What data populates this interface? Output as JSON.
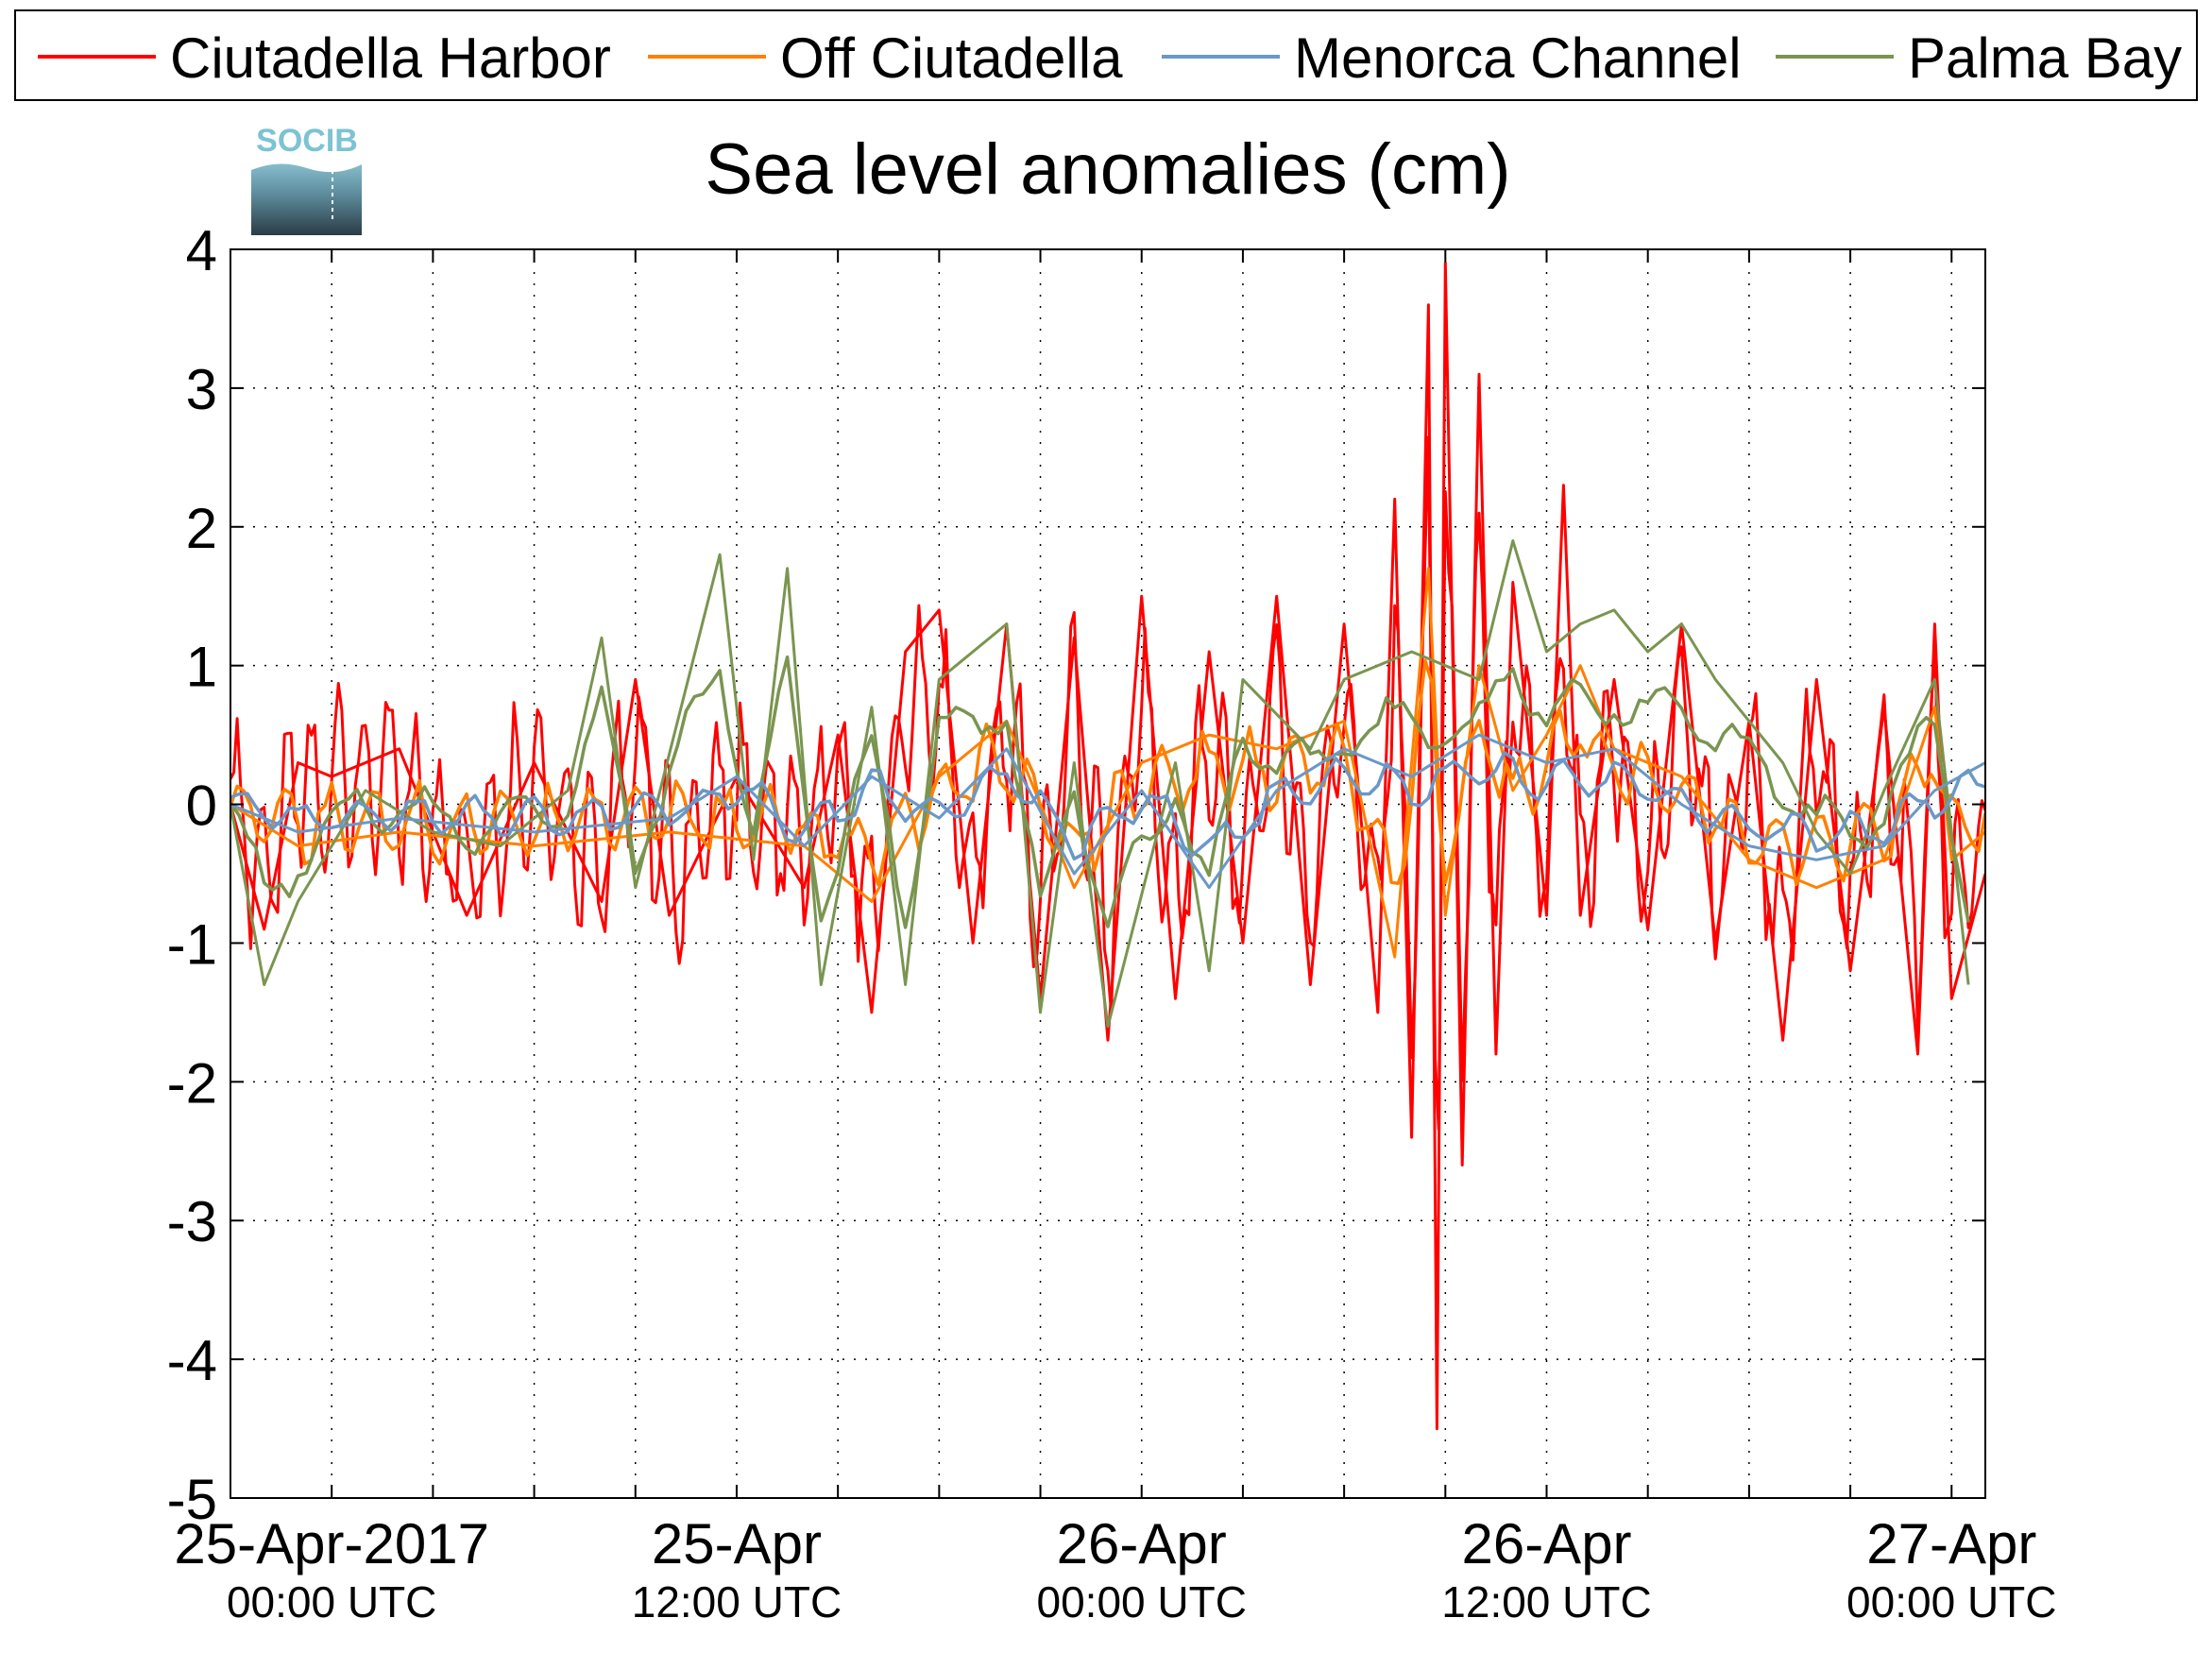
{
  "chart_data": {
    "type": "line",
    "title": "Sea level anomalies (cm)",
    "ylim": [
      -5,
      4
    ],
    "y_ticks": [
      -5,
      -4,
      -3,
      -2,
      -1,
      0,
      1,
      2,
      3,
      4
    ],
    "x_range": [
      "2017-04-24T21:00",
      "2017-04-27T01:00"
    ],
    "x_tick_labels": [
      {
        "date": "2017-04-25T00:00",
        "line1": "25-Apr-2017",
        "line2": "00:00 UTC"
      },
      {
        "date": "2017-04-25T12:00",
        "line1": "25-Apr",
        "line2": "12:00 UTC"
      },
      {
        "date": "2017-04-26T00:00",
        "line1": "26-Apr",
        "line2": "00:00 UTC"
      },
      {
        "date": "2017-04-26T12:00",
        "line1": "26-Apr",
        "line2": "12:00 UTC"
      },
      {
        "date": "2017-04-27T00:00",
        "line1": "27-Apr",
        "line2": "00:00 UTC"
      }
    ],
    "grid": true,
    "legend_position": "top",
    "logo_text": "SOCIB",
    "series": [
      {
        "name": "Ciutadella Harbor",
        "color": "#ff0000",
        "points": [
          [
            "2017-04-24T21:00",
            0.0
          ],
          [
            "2017-04-24T22:00",
            -0.9
          ],
          [
            "2017-04-24T23:00",
            0.3
          ],
          [
            "2017-04-25T00:00",
            0.2
          ],
          [
            "2017-04-25T02:00",
            0.4
          ],
          [
            "2017-04-25T04:00",
            -0.8
          ],
          [
            "2017-04-25T06:00",
            0.3
          ],
          [
            "2017-04-25T08:00",
            -0.7
          ],
          [
            "2017-04-25T09:00",
            0.9
          ],
          [
            "2017-04-25T10:00",
            -0.8
          ],
          [
            "2017-04-25T12:00",
            0.2
          ],
          [
            "2017-04-25T14:00",
            -0.6
          ],
          [
            "2017-04-25T15:00",
            0.5
          ],
          [
            "2017-04-25T16:00",
            -1.5
          ],
          [
            "2017-04-25T17:00",
            1.1
          ],
          [
            "2017-04-25T18:00",
            1.4
          ],
          [
            "2017-04-25T19:00",
            -1.0
          ],
          [
            "2017-04-25T20:00",
            1.3
          ],
          [
            "2017-04-25T21:00",
            -1.4
          ],
          [
            "2017-04-25T22:00",
            1.2
          ],
          [
            "2017-04-25T23:00",
            -1.7
          ],
          [
            "2017-04-26T00:00",
            1.5
          ],
          [
            "2017-04-26T01:00",
            -1.4
          ],
          [
            "2017-04-26T02:00",
            1.1
          ],
          [
            "2017-04-26T03:00",
            -1.0
          ],
          [
            "2017-04-26T04:00",
            1.5
          ],
          [
            "2017-04-26T05:00",
            -1.3
          ],
          [
            "2017-04-26T06:00",
            1.3
          ],
          [
            "2017-04-26T07:00",
            -1.5
          ],
          [
            "2017-04-26T07:30",
            2.2
          ],
          [
            "2017-04-26T08:00",
            -2.4
          ],
          [
            "2017-04-26T08:30",
            3.6
          ],
          [
            "2017-04-26T08:45",
            -4.5
          ],
          [
            "2017-04-26T09:00",
            3.9
          ],
          [
            "2017-04-26T09:30",
            -2.6
          ],
          [
            "2017-04-26T10:00",
            3.1
          ],
          [
            "2017-04-26T10:30",
            -1.8
          ],
          [
            "2017-04-26T11:00",
            1.6
          ],
          [
            "2017-04-26T12:00",
            -0.8
          ],
          [
            "2017-04-26T12:30",
            2.3
          ],
          [
            "2017-04-26T13:00",
            -0.8
          ],
          [
            "2017-04-26T14:00",
            0.9
          ],
          [
            "2017-04-26T15:00",
            -0.9
          ],
          [
            "2017-04-26T16:00",
            1.3
          ],
          [
            "2017-04-26T17:00",
            -1.0
          ],
          [
            "2017-04-26T18:00",
            0.6
          ],
          [
            "2017-04-26T19:00",
            -1.7
          ],
          [
            "2017-04-26T20:00",
            0.9
          ],
          [
            "2017-04-26T21:00",
            -1.2
          ],
          [
            "2017-04-26T22:00",
            0.7
          ],
          [
            "2017-04-26T23:00",
            -1.8
          ],
          [
            "2017-04-26T23:30",
            1.3
          ],
          [
            "2017-04-27T00:00",
            -1.4
          ],
          [
            "2017-04-27T01:00",
            -0.5
          ]
        ]
      },
      {
        "name": "Off Ciutadella",
        "color": "#ff8000",
        "points": [
          [
            "2017-04-24T21:00",
            0.0
          ],
          [
            "2017-04-24T23:00",
            -0.3
          ],
          [
            "2017-04-25T02:00",
            -0.2
          ],
          [
            "2017-04-25T06:00",
            -0.3
          ],
          [
            "2017-04-25T10:00",
            -0.2
          ],
          [
            "2017-04-25T14:00",
            -0.3
          ],
          [
            "2017-04-25T16:00",
            -0.7
          ],
          [
            "2017-04-25T18:00",
            0.2
          ],
          [
            "2017-04-25T20:00",
            0.6
          ],
          [
            "2017-04-25T22:00",
            -0.6
          ],
          [
            "2017-04-26T00:00",
            0.3
          ],
          [
            "2017-04-26T02:00",
            0.5
          ],
          [
            "2017-04-26T04:00",
            0.4
          ],
          [
            "2017-04-26T06:00",
            0.6
          ],
          [
            "2017-04-26T07:30",
            -1.1
          ],
          [
            "2017-04-26T08:30",
            1.7
          ],
          [
            "2017-04-26T09:00",
            -0.8
          ],
          [
            "2017-04-26T10:00",
            1.0
          ],
          [
            "2017-04-26T11:00",
            0.1
          ],
          [
            "2017-04-26T12:00",
            0.5
          ],
          [
            "2017-04-26T13:00",
            1.0
          ],
          [
            "2017-04-26T14:00",
            0.4
          ],
          [
            "2017-04-26T16:00",
            0.2
          ],
          [
            "2017-04-26T18:00",
            -0.4
          ],
          [
            "2017-04-26T20:00",
            -0.6
          ],
          [
            "2017-04-26T22:00",
            -0.4
          ],
          [
            "2017-04-26T23:30",
            0.7
          ],
          [
            "2017-04-27T00:00",
            -0.4
          ],
          [
            "2017-04-27T01:00",
            -0.2
          ]
        ]
      },
      {
        "name": "Menorca Channel",
        "color": "#6a98c8",
        "points": [
          [
            "2017-04-24T21:00",
            0.0
          ],
          [
            "2017-04-24T23:00",
            -0.2
          ],
          [
            "2017-04-25T02:00",
            -0.1
          ],
          [
            "2017-04-25T06:00",
            -0.2
          ],
          [
            "2017-04-25T10:00",
            -0.1
          ],
          [
            "2017-04-25T12:00",
            0.2
          ],
          [
            "2017-04-25T14:00",
            -0.3
          ],
          [
            "2017-04-25T16:00",
            0.2
          ],
          [
            "2017-04-25T18:00",
            -0.1
          ],
          [
            "2017-04-25T20:00",
            0.4
          ],
          [
            "2017-04-25T22:00",
            -0.5
          ],
          [
            "2017-04-26T00:00",
            0.1
          ],
          [
            "2017-04-26T02:00",
            -0.6
          ],
          [
            "2017-04-26T04:00",
            0.1
          ],
          [
            "2017-04-26T06:00",
            0.4
          ],
          [
            "2017-04-26T08:00",
            0.2
          ],
          [
            "2017-04-26T10:00",
            0.5
          ],
          [
            "2017-04-26T12:00",
            0.3
          ],
          [
            "2017-04-26T14:00",
            0.4
          ],
          [
            "2017-04-26T16:00",
            0.0
          ],
          [
            "2017-04-26T18:00",
            -0.3
          ],
          [
            "2017-04-26T20:00",
            -0.4
          ],
          [
            "2017-04-26T22:00",
            -0.3
          ],
          [
            "2017-04-26T23:30",
            0.1
          ],
          [
            "2017-04-27T01:00",
            0.3
          ]
        ]
      },
      {
        "name": "Palma Bay",
        "color": "#7a9550",
        "points": [
          [
            "2017-04-24T21:00",
            0.0
          ],
          [
            "2017-04-24T22:00",
            -1.3
          ],
          [
            "2017-04-24T23:00",
            -0.7
          ],
          [
            "2017-04-25T01:00",
            0.1
          ],
          [
            "2017-04-25T03:00",
            -0.2
          ],
          [
            "2017-04-25T05:00",
            -0.3
          ],
          [
            "2017-04-25T07:00",
            0.1
          ],
          [
            "2017-04-25T08:00",
            1.2
          ],
          [
            "2017-04-25T09:00",
            -0.6
          ],
          [
            "2017-04-25T11:30",
            1.8
          ],
          [
            "2017-04-25T12:30",
            -0.4
          ],
          [
            "2017-04-25T13:30",
            1.7
          ],
          [
            "2017-04-25T14:30",
            -1.3
          ],
          [
            "2017-04-25T16:00",
            0.7
          ],
          [
            "2017-04-25T17:00",
            -1.3
          ],
          [
            "2017-04-25T18:00",
            0.9
          ],
          [
            "2017-04-25T20:00",
            1.3
          ],
          [
            "2017-04-25T21:00",
            -1.5
          ],
          [
            "2017-04-25T22:00",
            0.3
          ],
          [
            "2017-04-25T23:00",
            -1.6
          ],
          [
            "2017-04-26T01:00",
            0.3
          ],
          [
            "2017-04-26T02:00",
            -1.2
          ],
          [
            "2017-04-26T03:00",
            0.9
          ],
          [
            "2017-04-26T05:00",
            0.4
          ],
          [
            "2017-04-26T06:00",
            0.9
          ],
          [
            "2017-04-26T08:00",
            1.1
          ],
          [
            "2017-04-26T10:00",
            0.9
          ],
          [
            "2017-04-26T11:00",
            1.9
          ],
          [
            "2017-04-26T12:00",
            1.1
          ],
          [
            "2017-04-26T13:00",
            1.3
          ],
          [
            "2017-04-26T14:00",
            1.4
          ],
          [
            "2017-04-26T15:00",
            1.1
          ],
          [
            "2017-04-26T16:00",
            1.3
          ],
          [
            "2017-04-26T17:00",
            0.9
          ],
          [
            "2017-04-26T18:00",
            0.6
          ],
          [
            "2017-04-26T19:00",
            0.3
          ],
          [
            "2017-04-26T20:00",
            -0.2
          ],
          [
            "2017-04-26T21:00",
            -0.5
          ],
          [
            "2017-04-26T22:00",
            0.1
          ],
          [
            "2017-04-26T23:30",
            0.9
          ],
          [
            "2017-04-27T00:30",
            -1.3
          ]
        ]
      }
    ]
  }
}
